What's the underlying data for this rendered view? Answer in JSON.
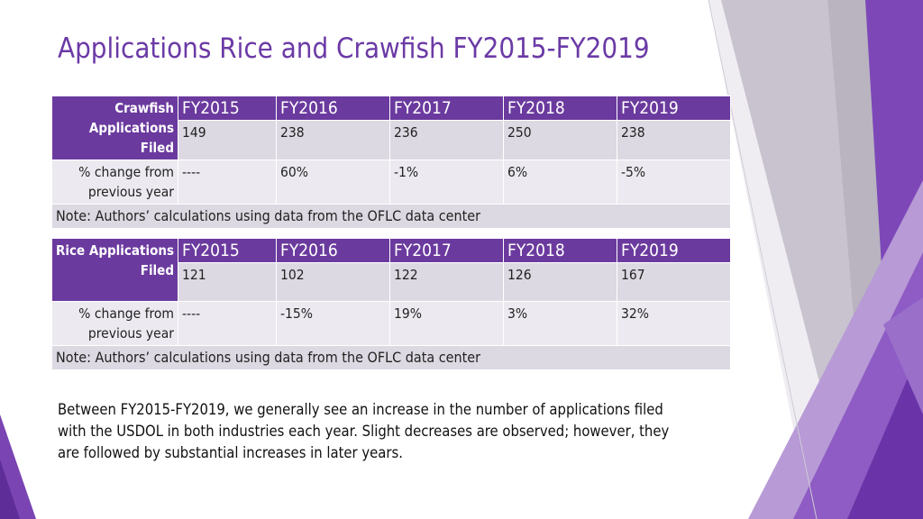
{
  "slide": {
    "title": "Applications Rice and Crawfish FY2015-FY2019",
    "colors": {
      "accent": "#6b3a9e",
      "title": "#6b3aa6",
      "row_dark": "#dcd9e2",
      "row_light": "#eceaf0"
    }
  },
  "tables": [
    {
      "stub_label": "Crawfish Applications Filed",
      "years": [
        "FY2015",
        "FY2016",
        "FY2017",
        "FY2018",
        "FY2019"
      ],
      "applications": [
        "149",
        "238",
        "236",
        "250",
        "238"
      ],
      "change_label": "% change from previous year",
      "change": [
        "----",
        "60%",
        "-1%",
        "6%",
        "-5%"
      ],
      "note": "Note: Authors’ calculations using data from the OFLC data center"
    },
    {
      "stub_label": "Rice Applications Filed",
      "years": [
        "FY2015",
        "FY2016",
        "FY2017",
        "FY2018",
        "FY2019"
      ],
      "applications": [
        "121",
        "102",
        "122",
        "126",
        "167"
      ],
      "change_label": "% change from previous year",
      "change": [
        "----",
        "-15%",
        "19%",
        "3%",
        "32%"
      ],
      "note": "Note: Authors’ calculations using data from the OFLC data center"
    }
  ],
  "summary": "Between FY2015-FY2019, we generally see an increase in the number of applications filed with the USDOL in both industries each year. Slight decreases are observed; however, they are followed by substantial increases in later years."
}
